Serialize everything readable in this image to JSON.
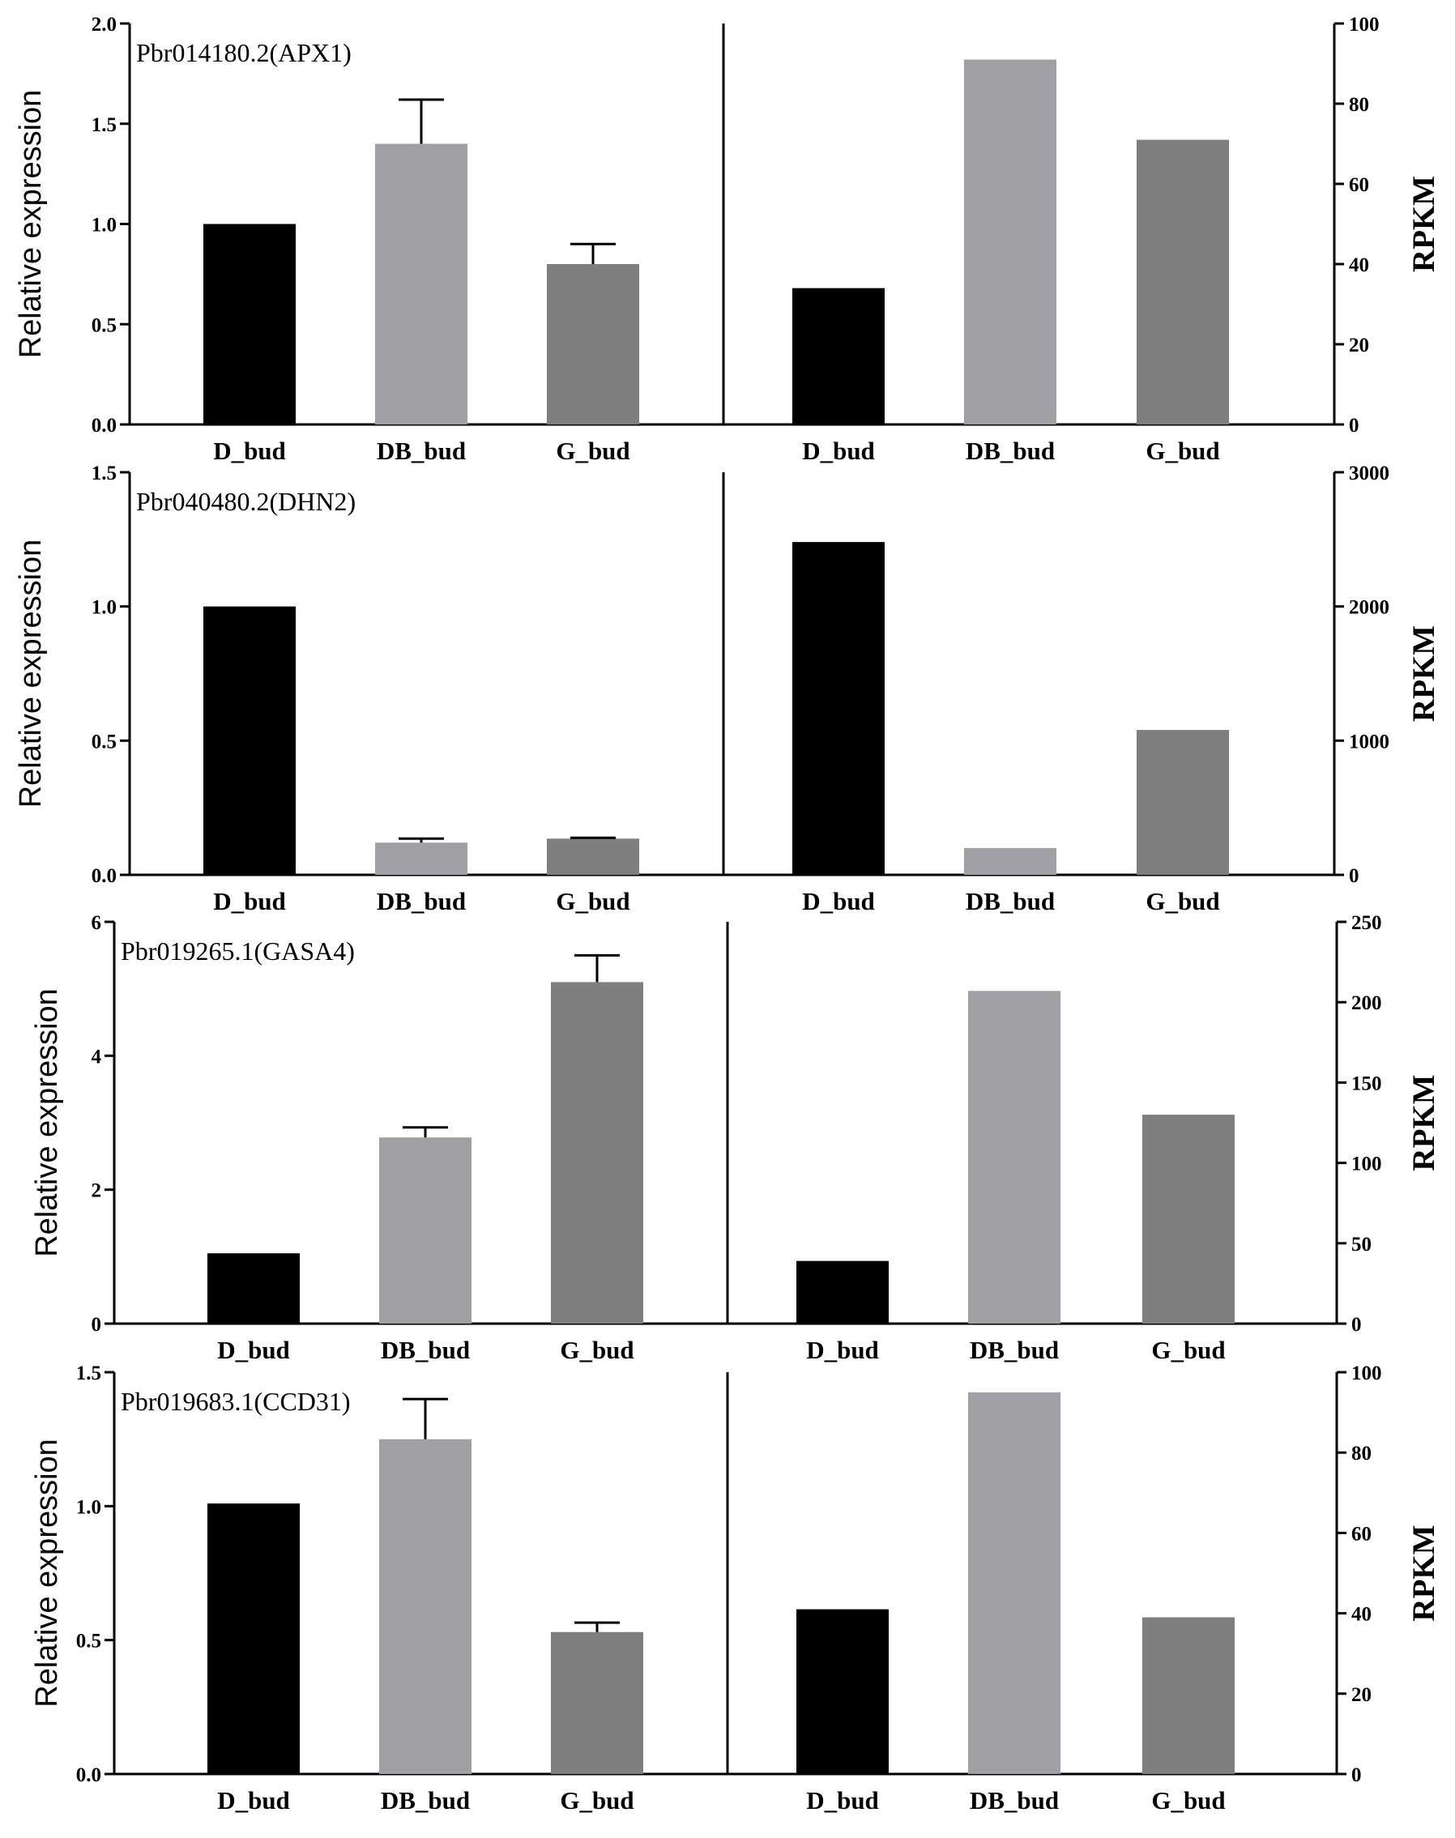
{
  "figure": {
    "colors": {
      "D_bud": "#000000",
      "DB_bud": "#a0a0a4",
      "G_bud": "#7f7f7f",
      "axis": "#000000"
    }
  },
  "chart_data": [
    {
      "type": "bar",
      "title": "Pbr014180.2(APX1)",
      "categories": [
        "D_bud",
        "DB_bud",
        "G_bud"
      ],
      "left": {
        "ylabel": "Relative expression",
        "ylim": [
          0,
          2.0
        ],
        "ticks": [
          "0.0",
          "0.5",
          "1.0",
          "1.5",
          "2.0"
        ],
        "tick_values": [
          0,
          0.5,
          1.0,
          1.5,
          2.0
        ],
        "values": [
          1.0,
          1.4,
          0.8
        ],
        "errors": [
          0,
          0.22,
          0.1
        ]
      },
      "right": {
        "ylabel": "RPKM",
        "ylim": [
          0,
          100
        ],
        "ticks": [
          "0",
          "20",
          "40",
          "60",
          "80",
          "100"
        ],
        "tick_values": [
          0,
          20,
          40,
          60,
          80,
          100
        ],
        "values": [
          34,
          91,
          71
        ]
      }
    },
    {
      "type": "bar",
      "title": "Pbr040480.2(DHN2)",
      "categories": [
        "D_bud",
        "DB_bud",
        "G_bud"
      ],
      "left": {
        "ylabel": "Relative expression",
        "ylim": [
          0,
          1.5
        ],
        "ticks": [
          "0.0",
          "0.5",
          "1.0",
          "1.5"
        ],
        "tick_values": [
          0,
          0.5,
          1.0,
          1.5
        ],
        "values": [
          1.0,
          0.12,
          0.135
        ],
        "errors": [
          0,
          0.015,
          0.003
        ]
      },
      "right": {
        "ylabel": "RPKM",
        "ylim": [
          0,
          3000
        ],
        "ticks": [
          "0",
          "1000",
          "2000",
          "3000"
        ],
        "tick_values": [
          0,
          1000,
          2000,
          3000
        ],
        "values": [
          2480,
          200,
          1080
        ]
      }
    },
    {
      "type": "bar",
      "title": "Pbr019265.1(GASA4)",
      "categories": [
        "D_bud",
        "DB_bud",
        "G_bud"
      ],
      "left": {
        "ylabel": "Relative expression",
        "ylim": [
          0,
          6
        ],
        "ticks": [
          "0",
          "2",
          "4",
          "6"
        ],
        "tick_values": [
          0,
          2,
          4,
          6
        ],
        "values": [
          1.05,
          2.78,
          5.1
        ],
        "errors": [
          0,
          0.15,
          0.4
        ]
      },
      "right": {
        "ylabel": "RPKM",
        "ylim": [
          0,
          250
        ],
        "ticks": [
          "0",
          "50",
          "100",
          "150",
          "200",
          "250"
        ],
        "tick_values": [
          0,
          50,
          100,
          150,
          200,
          250
        ],
        "values": [
          39,
          207,
          130
        ]
      }
    },
    {
      "type": "bar",
      "title": "Pbr019683.1(CCD31)",
      "categories": [
        "D_bud",
        "DB_bud",
        "G_bud"
      ],
      "left": {
        "ylabel": "Relative expression",
        "ylim": [
          0,
          1.5
        ],
        "ticks": [
          "0.0",
          "0.5",
          "1.0",
          "1.5"
        ],
        "tick_values": [
          0,
          0.5,
          1.0,
          1.5
        ],
        "values": [
          1.01,
          1.25,
          0.53
        ],
        "errors": [
          0,
          0.15,
          0.035
        ]
      },
      "right": {
        "ylabel": "RPKM",
        "ylim": [
          0,
          100
        ],
        "ticks": [
          "0",
          "20",
          "40",
          "60",
          "80",
          "100"
        ],
        "tick_values": [
          0,
          20,
          40,
          60,
          80,
          100
        ],
        "values": [
          41,
          95,
          39
        ]
      }
    }
  ]
}
